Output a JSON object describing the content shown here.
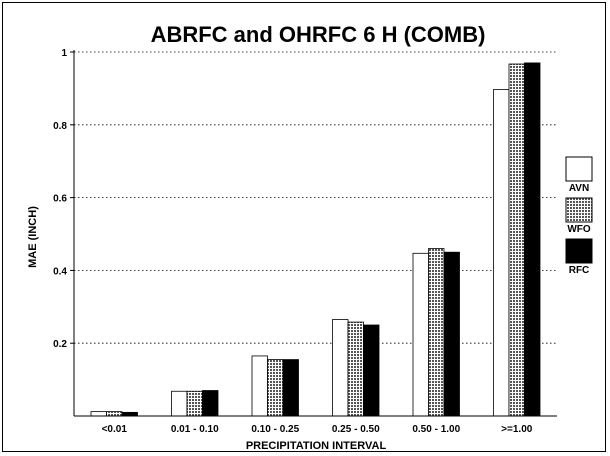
{
  "chart_data": {
    "type": "bar",
    "title": "ABRFC and OHRFC  6 H  (COMB)",
    "xlabel": "PRECIPITATION INTERVAL",
    "ylabel": "MAE (INCH)",
    "ylim": [
      0,
      1
    ],
    "yticks": [
      "0.2",
      "0.4",
      "0.6",
      "0.8",
      "1"
    ],
    "ytick_values": [
      0.2,
      0.4,
      0.6,
      0.8,
      1.0
    ],
    "grid": "horizontal dotted",
    "legend_position": "right",
    "categories": [
      "<0.01",
      "0.01 - 0.10",
      "0.10 - 0.25",
      "0.25 - 0.50",
      "0.50 - 1.00",
      ">=1.00"
    ],
    "series": [
      {
        "name": "AVN",
        "fill": "white",
        "values": [
          0.012,
          0.068,
          0.165,
          0.265,
          0.447,
          0.897
        ]
      },
      {
        "name": "WFO",
        "fill": "crosshatch",
        "values": [
          0.012,
          0.068,
          0.155,
          0.258,
          0.46,
          0.967
        ]
      },
      {
        "name": "RFC",
        "fill": "black",
        "values": [
          0.01,
          0.07,
          0.155,
          0.25,
          0.45,
          0.97
        ]
      }
    ]
  }
}
